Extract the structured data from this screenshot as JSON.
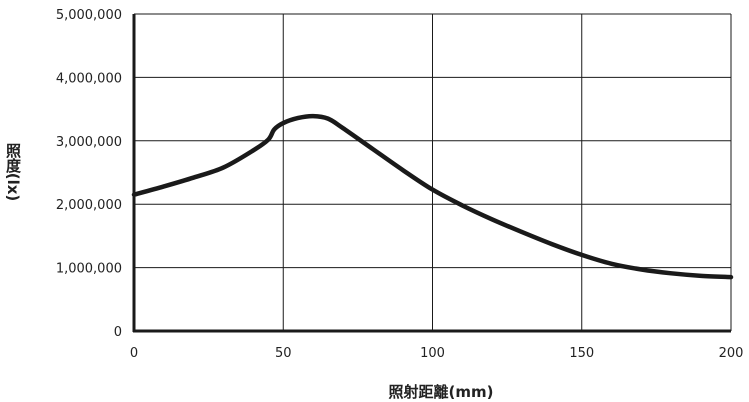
{
  "chart_data": {
    "type": "line",
    "xlabel": "照射距離(mm)",
    "ylabel": "照度(lx)",
    "xlim": [
      0,
      200
    ],
    "ylim": [
      0,
      5000000
    ],
    "x_ticks": [
      0,
      50,
      100,
      150,
      200
    ],
    "y_ticks": [
      0,
      1000000,
      2000000,
      3000000,
      4000000,
      5000000
    ],
    "x_tick_labels": [
      "0",
      "50",
      "100",
      "150",
      "200"
    ],
    "y_tick_labels": [
      "0",
      "1,000,000",
      "2,000,000",
      "3,000,000",
      "4,000,000",
      "5,000,000"
    ],
    "grid": true,
    "legend": "none",
    "series": [
      {
        "x": [
          0,
          10,
          20,
          30,
          40,
          45,
          47,
          50,
          55,
          60,
          65,
          70,
          80,
          90,
          100,
          110,
          120,
          130,
          140,
          150,
          160,
          170,
          180,
          190,
          200
        ],
        "y": [
          2150000,
          2280000,
          2420000,
          2580000,
          2850000,
          3020000,
          3180000,
          3280000,
          3360000,
          3390000,
          3350000,
          3200000,
          2870000,
          2540000,
          2230000,
          1980000,
          1760000,
          1560000,
          1370000,
          1200000,
          1060000,
          970000,
          910000,
          870000,
          850000
        ]
      }
    ],
    "colors": {
      "line": "#1a1a1a",
      "grid": "#1a1a1a",
      "axis": "#1a1a1a"
    }
  }
}
